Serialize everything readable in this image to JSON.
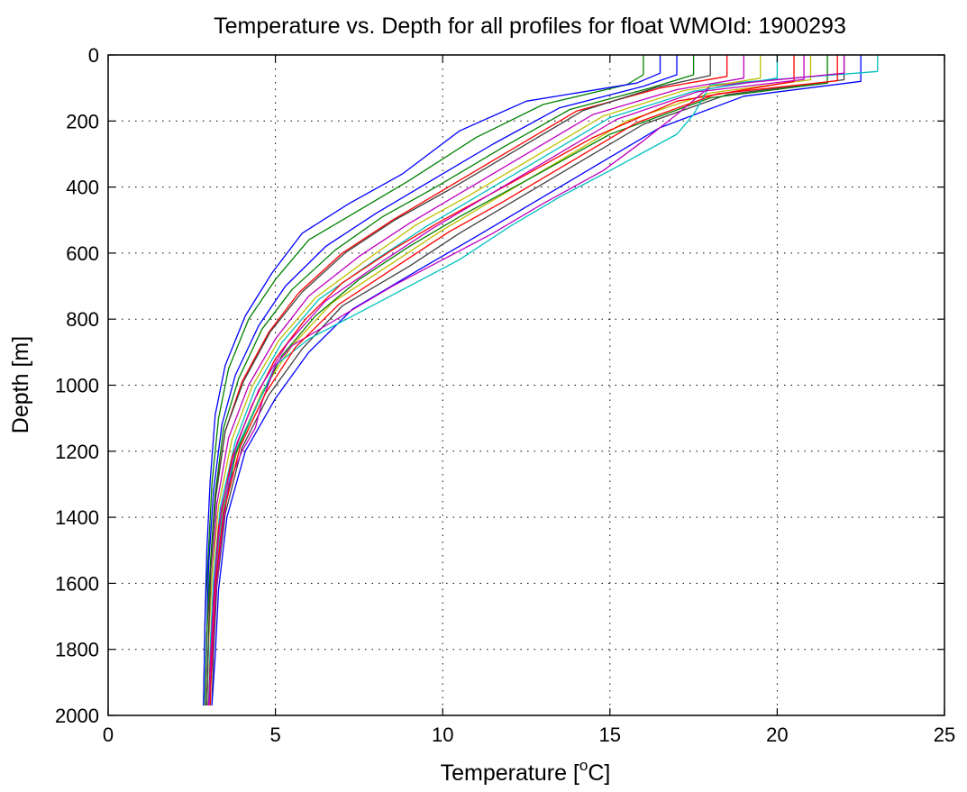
{
  "chart_data": {
    "type": "line",
    "title": "Temperature vs. Depth for all profiles for float WMOId: 1900293",
    "xlabel": "Temperature [",
    "xlabel_superscript": "o",
    "xlabel_suffix": "C]",
    "ylabel": "Depth [m]",
    "xlim": [
      0,
      25
    ],
    "ylim": [
      0,
      2000
    ],
    "y_reversed": true,
    "grid": true,
    "x_ticks": [
      0,
      5,
      10,
      15,
      20,
      25
    ],
    "y_ticks": [
      0,
      200,
      400,
      600,
      800,
      1000,
      1200,
      1400,
      1600,
      1800,
      2000
    ],
    "x_tick_labels": [
      "0",
      "5",
      "10",
      "15",
      "20",
      "25"
    ],
    "y_tick_labels": [
      "0",
      "200",
      "400",
      "600",
      "800",
      "1000",
      "1200",
      "1400",
      "1600",
      "1800",
      "2000"
    ],
    "series_colors": [
      "#0000ff",
      "#008000",
      "#ff0000",
      "#00bfbf",
      "#bf00bf",
      "#bfbf00",
      "#404040"
    ],
    "series_count_note": "many overlapping profiles",
    "series": [
      {
        "color": "#008000",
        "points": [
          [
            16.0,
            0
          ],
          [
            16.0,
            60
          ],
          [
            15.5,
            90
          ],
          [
            13.0,
            150
          ],
          [
            11.0,
            250
          ],
          [
            9.0,
            380
          ],
          [
            7.5,
            470
          ],
          [
            6.0,
            560
          ],
          [
            5.0,
            680
          ],
          [
            4.2,
            800
          ],
          [
            3.6,
            950
          ],
          [
            3.3,
            1100
          ],
          [
            3.1,
            1300
          ],
          [
            3.0,
            1500
          ],
          [
            2.9,
            1700
          ],
          [
            2.85,
            1970
          ]
        ]
      },
      {
        "color": "#0000ff",
        "points": [
          [
            17.0,
            0
          ],
          [
            17.0,
            60
          ],
          [
            16.0,
            95
          ],
          [
            13.5,
            160
          ],
          [
            11.5,
            270
          ],
          [
            9.5,
            390
          ],
          [
            8.0,
            480
          ],
          [
            6.5,
            580
          ],
          [
            5.3,
            700
          ],
          [
            4.5,
            820
          ],
          [
            3.8,
            970
          ],
          [
            3.4,
            1120
          ],
          [
            3.15,
            1320
          ],
          [
            3.0,
            1550
          ],
          [
            2.95,
            1750
          ],
          [
            2.9,
            1970
          ]
        ]
      },
      {
        "color": "#ff0000",
        "points": [
          [
            18.5,
            0
          ],
          [
            18.5,
            65
          ],
          [
            16.5,
            100
          ],
          [
            14.0,
            170
          ],
          [
            12.0,
            290
          ],
          [
            10.0,
            410
          ],
          [
            8.5,
            500
          ],
          [
            7.0,
            600
          ],
          [
            5.7,
            720
          ],
          [
            4.8,
            840
          ],
          [
            4.0,
            990
          ],
          [
            3.5,
            1140
          ],
          [
            3.2,
            1340
          ],
          [
            3.05,
            1560
          ],
          [
            3.0,
            1760
          ],
          [
            2.95,
            1970
          ]
        ]
      },
      {
        "color": "#bf00bf",
        "points": [
          [
            19.0,
            0
          ],
          [
            19.0,
            70
          ],
          [
            17.0,
            105
          ],
          [
            14.5,
            180
          ],
          [
            12.5,
            300
          ],
          [
            10.5,
            420
          ],
          [
            9.0,
            510
          ],
          [
            7.5,
            610
          ],
          [
            6.0,
            730
          ],
          [
            5.0,
            860
          ],
          [
            4.2,
            1000
          ],
          [
            3.6,
            1160
          ],
          [
            3.25,
            1360
          ],
          [
            3.1,
            1580
          ],
          [
            3.0,
            1780
          ],
          [
            2.95,
            1970
          ]
        ]
      },
      {
        "color": "#00bfbf",
        "points": [
          [
            20.0,
            0
          ],
          [
            20.0,
            70
          ],
          [
            17.5,
            110
          ],
          [
            15.0,
            190
          ],
          [
            13.0,
            310
          ],
          [
            11.0,
            430
          ],
          [
            9.5,
            520
          ],
          [
            8.0,
            620
          ],
          [
            6.3,
            740
          ],
          [
            5.2,
            870
          ],
          [
            4.4,
            1010
          ],
          [
            3.8,
            1170
          ],
          [
            3.35,
            1370
          ],
          [
            3.15,
            1590
          ],
          [
            3.05,
            1790
          ],
          [
            3.0,
            1970
          ]
        ]
      },
      {
        "color": "#bfbf00",
        "points": [
          [
            21.0,
            0
          ],
          [
            21.0,
            75
          ],
          [
            18.0,
            115
          ],
          [
            15.5,
            200
          ],
          [
            13.5,
            320
          ],
          [
            11.5,
            440
          ],
          [
            10.0,
            530
          ],
          [
            8.5,
            630
          ],
          [
            6.7,
            750
          ],
          [
            5.5,
            880
          ],
          [
            4.6,
            1020
          ],
          [
            3.9,
            1180
          ],
          [
            3.4,
            1380
          ],
          [
            3.2,
            1600
          ],
          [
            3.1,
            1800
          ],
          [
            3.05,
            1970
          ]
        ]
      },
      {
        "color": "#404040",
        "points": [
          [
            22.0,
            0
          ],
          [
            22.0,
            75
          ],
          [
            18.5,
            120
          ],
          [
            16.0,
            210
          ],
          [
            14.0,
            330
          ],
          [
            12.0,
            450
          ],
          [
            10.5,
            540
          ],
          [
            9.0,
            640
          ],
          [
            7.0,
            760
          ],
          [
            5.8,
            890
          ],
          [
            4.8,
            1030
          ],
          [
            4.0,
            1190
          ],
          [
            3.5,
            1390
          ],
          [
            3.25,
            1610
          ],
          [
            3.15,
            1810
          ],
          [
            3.1,
            1970
          ]
        ]
      },
      {
        "color": "#0000ff",
        "points": [
          [
            22.5,
            0
          ],
          [
            22.5,
            80
          ],
          [
            19.0,
            125
          ],
          [
            16.5,
            220
          ],
          [
            14.5,
            340
          ],
          [
            12.5,
            460
          ],
          [
            11.0,
            550
          ],
          [
            9.3,
            650
          ],
          [
            7.3,
            770
          ],
          [
            6.0,
            900
          ],
          [
            5.0,
            1040
          ],
          [
            4.1,
            1200
          ],
          [
            3.55,
            1400
          ],
          [
            3.3,
            1620
          ],
          [
            3.2,
            1820
          ],
          [
            3.1,
            1970
          ]
        ]
      },
      {
        "color": "#008000",
        "points": [
          [
            21.5,
            0
          ],
          [
            21.5,
            85
          ],
          [
            18.0,
            130
          ],
          [
            15.0,
            240
          ],
          [
            12.5,
            380
          ],
          [
            10.5,
            490
          ],
          [
            9.0,
            580
          ],
          [
            7.5,
            680
          ],
          [
            6.2,
            790
          ],
          [
            5.2,
            910
          ],
          [
            4.5,
            1050
          ],
          [
            3.8,
            1210
          ],
          [
            3.4,
            1420
          ],
          [
            3.2,
            1640
          ],
          [
            3.1,
            1840
          ],
          [
            3.0,
            1970
          ]
        ]
      },
      {
        "color": "#ff0000",
        "points": [
          [
            20.5,
            0
          ],
          [
            20.5,
            80
          ],
          [
            17.0,
            140
          ],
          [
            14.5,
            250
          ],
          [
            12.0,
            390
          ],
          [
            10.0,
            500
          ],
          [
            8.5,
            590
          ],
          [
            7.0,
            690
          ],
          [
            5.9,
            800
          ],
          [
            5.0,
            920
          ],
          [
            4.3,
            1060
          ],
          [
            3.7,
            1220
          ],
          [
            3.3,
            1430
          ],
          [
            3.15,
            1650
          ],
          [
            3.05,
            1850
          ],
          [
            3.0,
            1970
          ]
        ]
      },
      {
        "color": "#00bfbf",
        "points": [
          [
            23.0,
            0
          ],
          [
            23.0,
            50
          ],
          [
            18.0,
            90
          ],
          [
            17.5,
            180
          ],
          [
            17.0,
            240
          ],
          [
            15.0,
            350
          ],
          [
            13.5,
            430
          ],
          [
            12.0,
            520
          ],
          [
            10.5,
            620
          ],
          [
            9.0,
            700
          ],
          [
            7.5,
            780
          ],
          [
            6.0,
            860
          ],
          [
            5.0,
            940
          ],
          [
            4.5,
            1050
          ],
          [
            3.8,
            1200
          ],
          [
            3.4,
            1400
          ],
          [
            3.2,
            1600
          ],
          [
            3.1,
            1800
          ],
          [
            3.0,
            1970
          ]
        ]
      },
      {
        "color": "#bf00bf",
        "points": [
          [
            22.0,
            0
          ],
          [
            22.0,
            55
          ],
          [
            18.0,
            95
          ],
          [
            17.0,
            180
          ],
          [
            16.0,
            260
          ],
          [
            14.8,
            350
          ],
          [
            13.0,
            450
          ],
          [
            11.5,
            540
          ],
          [
            10.0,
            620
          ],
          [
            8.5,
            700
          ],
          [
            7.5,
            760
          ],
          [
            6.5,
            820
          ],
          [
            5.5,
            880
          ],
          [
            5.0,
            940
          ],
          [
            4.6,
            1050
          ],
          [
            4.4,
            1130
          ],
          [
            4.0,
            1200
          ],
          [
            3.6,
            1300
          ],
          [
            3.4,
            1450
          ],
          [
            3.2,
            1650
          ],
          [
            3.1,
            1850
          ],
          [
            3.0,
            1970
          ]
        ]
      },
      {
        "color": "#0000ff",
        "points": [
          [
            16.5,
            0
          ],
          [
            16.5,
            55
          ],
          [
            15.8,
            85
          ],
          [
            12.5,
            140
          ],
          [
            10.5,
            230
          ],
          [
            8.8,
            360
          ],
          [
            7.2,
            450
          ],
          [
            5.8,
            540
          ],
          [
            4.9,
            660
          ],
          [
            4.1,
            790
          ],
          [
            3.5,
            940
          ],
          [
            3.2,
            1090
          ],
          [
            3.05,
            1290
          ],
          [
            2.95,
            1500
          ],
          [
            2.9,
            1700
          ],
          [
            2.85,
            1970
          ]
        ]
      },
      {
        "color": "#008000",
        "points": [
          [
            17.5,
            0
          ],
          [
            17.5,
            60
          ],
          [
            16.2,
            100
          ],
          [
            13.8,
            165
          ],
          [
            11.8,
            280
          ],
          [
            9.8,
            400
          ],
          [
            8.2,
            490
          ],
          [
            6.8,
            590
          ],
          [
            5.5,
            710
          ],
          [
            4.6,
            830
          ],
          [
            3.9,
            980
          ],
          [
            3.45,
            1130
          ],
          [
            3.2,
            1330
          ],
          [
            3.05,
            1550
          ],
          [
            2.95,
            1750
          ],
          [
            2.9,
            1970
          ]
        ]
      },
      {
        "color": "#bfbf00",
        "points": [
          [
            19.5,
            0
          ],
          [
            19.5,
            70
          ],
          [
            17.2,
            108
          ],
          [
            14.8,
            185
          ],
          [
            12.8,
            305
          ],
          [
            10.8,
            425
          ],
          [
            9.2,
            515
          ],
          [
            7.8,
            615
          ],
          [
            6.2,
            735
          ],
          [
            5.1,
            865
          ],
          [
            4.3,
            1005
          ],
          [
            3.7,
            1165
          ],
          [
            3.3,
            1365
          ],
          [
            3.1,
            1585
          ],
          [
            3.0,
            1785
          ],
          [
            2.95,
            1970
          ]
        ]
      },
      {
        "color": "#ff0000",
        "points": [
          [
            21.8,
            0
          ],
          [
            21.8,
            78
          ],
          [
            18.2,
            118
          ],
          [
            15.8,
            205
          ],
          [
            13.8,
            325
          ],
          [
            11.8,
            445
          ],
          [
            10.2,
            535
          ],
          [
            8.7,
            635
          ],
          [
            6.9,
            755
          ],
          [
            5.6,
            885
          ],
          [
            4.7,
            1025
          ],
          [
            3.95,
            1185
          ],
          [
            3.45,
            1385
          ],
          [
            3.2,
            1605
          ],
          [
            3.1,
            1805
          ],
          [
            3.05,
            1970
          ]
        ]
      },
      {
        "color": "#404040",
        "points": [
          [
            18.0,
            0
          ],
          [
            18.0,
            62
          ],
          [
            16.4,
            98
          ],
          [
            14.2,
            168
          ],
          [
            12.2,
            288
          ],
          [
            10.2,
            408
          ],
          [
            8.6,
            498
          ],
          [
            7.1,
            598
          ],
          [
            5.8,
            718
          ],
          [
            4.85,
            838
          ],
          [
            4.05,
            988
          ],
          [
            3.5,
            1138
          ],
          [
            3.22,
            1338
          ],
          [
            3.07,
            1558
          ],
          [
            3.0,
            1758
          ],
          [
            2.95,
            1970
          ]
        ]
      },
      {
        "color": "#bf00bf",
        "points": [
          [
            20.8,
            0
          ],
          [
            20.8,
            74
          ],
          [
            17.6,
            112
          ],
          [
            15.2,
            195
          ],
          [
            13.2,
            315
          ],
          [
            11.2,
            435
          ],
          [
            9.7,
            525
          ],
          [
            8.2,
            625
          ],
          [
            6.5,
            745
          ],
          [
            5.35,
            875
          ],
          [
            4.5,
            1015
          ],
          [
            3.85,
            1175
          ],
          [
            3.38,
            1375
          ],
          [
            3.18,
            1595
          ],
          [
            3.08,
            1795
          ],
          [
            3.02,
            1970
          ]
        ]
      }
    ]
  }
}
